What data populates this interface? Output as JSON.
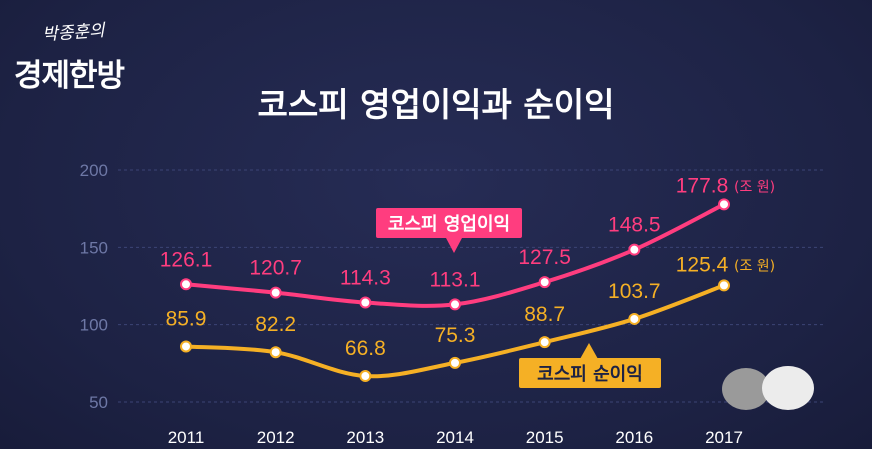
{
  "brand": {
    "top": "박종훈의",
    "main": "경제한방"
  },
  "chart_data": {
    "type": "line",
    "title": "코스피 영업이익과 순이익",
    "categories": [
      "2011",
      "2012",
      "2013",
      "2014",
      "2015",
      "2016",
      "2017"
    ],
    "ylim": [
      50,
      200
    ],
    "yticks": [
      "50",
      "100",
      "150",
      "200"
    ],
    "grid": true,
    "series": [
      {
        "name": "코스피 영업이익",
        "color": "#ff3d7f",
        "values": [
          126.1,
          120.7,
          114.3,
          113.1,
          127.5,
          148.5,
          177.8
        ],
        "labels": [
          "126.1",
          "120.7",
          "114.3",
          "113.1",
          "127.5",
          "148.5",
          "177.8"
        ],
        "unit": "(조 원)"
      },
      {
        "name": "코스피 순이익",
        "color": "#f5b025",
        "values": [
          85.9,
          82.2,
          66.8,
          75.3,
          88.7,
          103.7,
          125.4
        ],
        "labels": [
          "85.9",
          "82.2",
          "66.8",
          "75.3",
          "88.7",
          "103.7",
          "125.4"
        ],
        "unit": "(조 원)"
      }
    ]
  }
}
